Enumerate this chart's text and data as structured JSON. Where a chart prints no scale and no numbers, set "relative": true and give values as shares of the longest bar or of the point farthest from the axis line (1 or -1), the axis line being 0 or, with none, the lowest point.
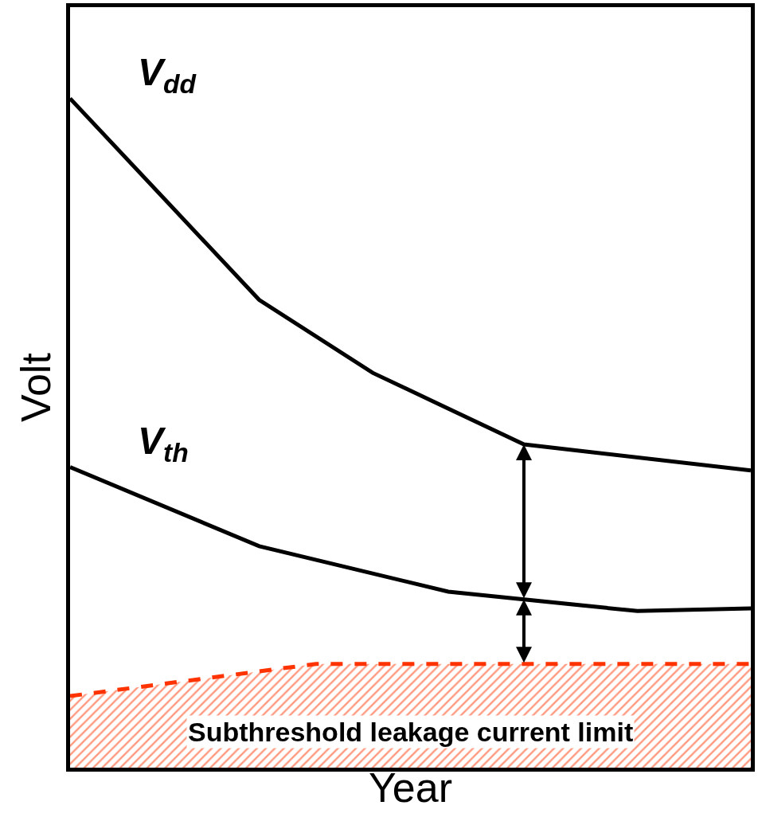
{
  "chart_data": {
    "type": "line",
    "relative": true,
    "xlabel": "Year",
    "ylabel": "Volt",
    "categories": [
      null,
      null,
      null,
      null,
      null,
      null,
      null,
      null,
      null,
      null,
      null,
      null,
      null,
      null,
      null,
      null,
      null,
      null,
      null,
      null,
      null,
      null,
      null,
      null,
      null,
      null,
      null,
      null,
      null,
      null,
      null,
      null,
      null,
      null,
      null,
      null,
      null
    ],
    "series": [
      {
        "name": "V$_{dd}$",
        "color": "#000000",
        "values": [
          1.0,
          null,
          null,
          null,
          null,
          null,
          null,
          null,
          null,
          null,
          0.699,
          null,
          null,
          null,
          null,
          null,
          0.59,
          null,
          null,
          null,
          null,
          null,
          null,
          null,
          0.483,
          null,
          null,
          null,
          null,
          null,
          null,
          null,
          null,
          null,
          null,
          null,
          0.444
        ]
      },
      {
        "name": "V$_{th}$",
        "color": "#000000",
        "values": [
          0.449,
          null,
          null,
          null,
          null,
          null,
          null,
          null,
          null,
          null,
          0.331,
          null,
          null,
          null,
          null,
          null,
          null,
          null,
          null,
          null,
          0.263,
          null,
          null,
          null,
          null,
          null,
          null,
          null,
          null,
          null,
          0.234,
          null,
          null,
          null,
          null,
          null,
          0.238
        ]
      },
      {
        "name": "Subthreshold leakage current limit",
        "type": "area",
        "color": "#ff3300",
        "line_style": "dashed",
        "values": [
          0.107,
          null,
          null,
          null,
          null,
          null,
          null,
          null,
          null,
          null,
          null,
          null,
          null,
          0.155,
          null,
          null,
          null,
          null,
          null,
          null,
          null,
          null,
          null,
          null,
          null,
          null,
          null,
          null,
          null,
          null,
          null,
          null,
          null,
          null,
          null,
          null,
          0.155
        ]
      }
    ],
    "legend": false,
    "tick_labels": false
  }
}
